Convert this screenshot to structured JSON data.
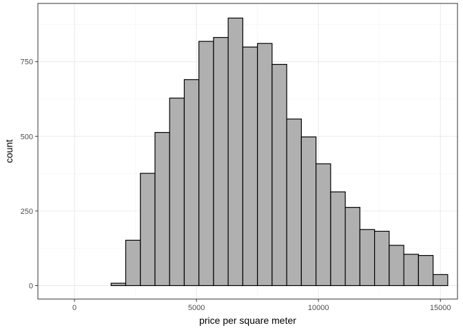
{
  "chart_data": {
    "type": "bar",
    "subtype": "histogram",
    "title": "",
    "xlabel": "price per square meter",
    "ylabel": "count",
    "xlim": [
      -1500,
      15700
    ],
    "ylim": [
      -45,
      945
    ],
    "x_ticks": [
      0,
      5000,
      10000,
      15000
    ],
    "x_tick_labels": [
      "0",
      "5000",
      "10000",
      "15000"
    ],
    "y_ticks": [
      0,
      250,
      500,
      750
    ],
    "y_tick_labels": [
      "0",
      "250",
      "500",
      "750"
    ],
    "grid": true,
    "bin_width": 600,
    "bins": [
      {
        "x0": 1500,
        "x1": 2100,
        "count": 8
      },
      {
        "x0": 2100,
        "x1": 2700,
        "count": 152
      },
      {
        "x0": 2700,
        "x1": 3300,
        "count": 376
      },
      {
        "x0": 3300,
        "x1": 3900,
        "count": 513
      },
      {
        "x0": 3900,
        "x1": 4500,
        "count": 628
      },
      {
        "x0": 4500,
        "x1": 5100,
        "count": 690
      },
      {
        "x0": 5100,
        "x1": 5700,
        "count": 818
      },
      {
        "x0": 5700,
        "x1": 6300,
        "count": 831
      },
      {
        "x0": 6300,
        "x1": 6900,
        "count": 896
      },
      {
        "x0": 6900,
        "x1": 7500,
        "count": 799
      },
      {
        "x0": 7500,
        "x1": 8100,
        "count": 811
      },
      {
        "x0": 8100,
        "x1": 8700,
        "count": 741
      },
      {
        "x0": 8700,
        "x1": 9300,
        "count": 558
      },
      {
        "x0": 9300,
        "x1": 9900,
        "count": 498
      },
      {
        "x0": 9900,
        "x1": 10500,
        "count": 408
      },
      {
        "x0": 10500,
        "x1": 11100,
        "count": 314
      },
      {
        "x0": 11100,
        "x1": 11700,
        "count": 262
      },
      {
        "x0": 11700,
        "x1": 12300,
        "count": 188
      },
      {
        "x0": 12300,
        "x1": 12900,
        "count": 182
      },
      {
        "x0": 12900,
        "x1": 13500,
        "count": 135
      },
      {
        "x0": 13500,
        "x1": 14100,
        "count": 105
      },
      {
        "x0": 14100,
        "x1": 14700,
        "count": 101
      },
      {
        "x0": 14700,
        "x1": 15300,
        "count": 37
      }
    ],
    "colors": {
      "bar_fill": "#b0b0b0",
      "bar_stroke": "#000000",
      "panel_border": "#333333",
      "grid_major": "#ebebeb",
      "grid_minor": "#f5f5f5"
    }
  }
}
